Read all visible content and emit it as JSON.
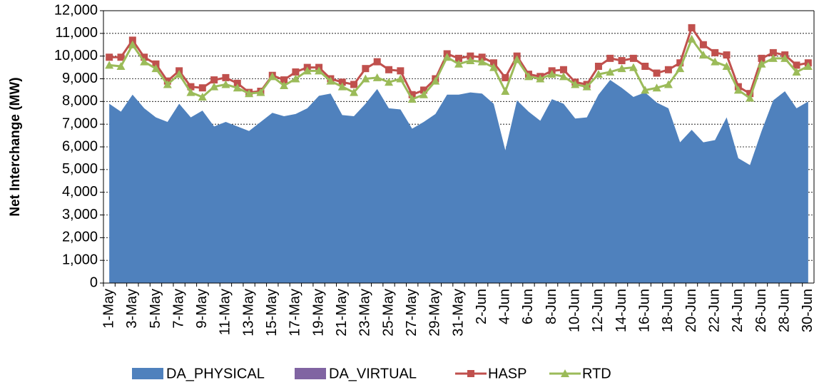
{
  "chart_data": {
    "type": "combo",
    "y_label": "Net Interchange (MW)",
    "categories": [
      "1-May",
      null,
      "3-May",
      null,
      "5-May",
      null,
      "7-May",
      null,
      "9-May",
      null,
      "11-May",
      null,
      "13-May",
      null,
      "15-May",
      null,
      "17-May",
      null,
      "19-May",
      null,
      "21-May",
      null,
      "23-May",
      null,
      "25-May",
      null,
      "27-May",
      null,
      "29-May",
      null,
      "31-May",
      null,
      "2-Jun",
      null,
      "4-Jun",
      null,
      "6-Jun",
      null,
      "8-Jun",
      null,
      "10-Jun",
      null,
      "12-Jun",
      null,
      "14-Jun",
      null,
      "16-Jun",
      null,
      "18-Jun",
      null,
      "20-Jun",
      null,
      "22-Jun",
      null,
      "24-Jun",
      null,
      "26-Jun",
      null,
      "28-Jun",
      null,
      "30-Jun"
    ],
    "series": [
      {
        "name": "DA_PHYSICAL",
        "type": "area",
        "color": "#4f81bd",
        "values": [
          7900,
          7550,
          8300,
          7700,
          7300,
          7100,
          7900,
          7300,
          7600,
          6900,
          7100,
          6900,
          6700,
          7100,
          7500,
          7350,
          7450,
          7700,
          8250,
          8350,
          7400,
          7350,
          7900,
          8550,
          7700,
          7650,
          6800,
          7100,
          7450,
          8300,
          8300,
          8400,
          8350,
          7900,
          5850,
          8050,
          7550,
          7150,
          8100,
          7900,
          7250,
          7300,
          8300,
          8950,
          8600,
          8200,
          8400,
          7950,
          7700,
          6200,
          6750,
          6200,
          6300,
          7300,
          5500,
          5200,
          6700,
          8050,
          8450,
          7700,
          8000
        ]
      },
      {
        "name": "DA_VIRTUAL",
        "type": "area",
        "color": "#8064a2",
        "values": [
          0,
          0,
          0,
          0,
          0,
          0,
          0,
          0,
          0,
          0,
          0,
          0,
          0,
          0,
          0,
          0,
          0,
          0,
          0,
          0,
          0,
          0,
          0,
          0,
          0,
          0,
          0,
          0,
          0,
          0,
          0,
          0,
          0,
          0,
          0,
          0,
          0,
          0,
          0,
          0,
          0,
          0,
          0,
          0,
          0,
          0,
          0,
          0,
          0,
          0,
          0,
          0,
          0,
          0,
          0,
          0,
          0,
          0,
          0,
          0,
          0
        ]
      },
      {
        "name": "HASP",
        "type": "line",
        "marker": "square",
        "color": "#c0504d",
        "values": [
          9950,
          9950,
          10700,
          9950,
          9650,
          8900,
          9350,
          8650,
          8600,
          8950,
          9050,
          8800,
          8400,
          8450,
          9150,
          8950,
          9300,
          9500,
          9500,
          9000,
          8850,
          8750,
          9450,
          9750,
          9400,
          9350,
          8300,
          8500,
          9000,
          10100,
          9900,
          10000,
          9950,
          9700,
          9050,
          10000,
          9200,
          9100,
          9350,
          9400,
          8850,
          8750,
          9550,
          9900,
          9800,
          9900,
          9550,
          9250,
          9400,
          9700,
          11250,
          10500,
          10150,
          10050,
          8650,
          8350,
          9900,
          10150,
          10050,
          9600,
          9700
        ]
      },
      {
        "name": "RTD",
        "type": "line",
        "marker": "triangle",
        "color": "#9bbb59",
        "values": [
          9600,
          9550,
          10500,
          9750,
          9450,
          8750,
          9200,
          8400,
          8200,
          8650,
          8750,
          8600,
          8350,
          8400,
          9100,
          8700,
          9000,
          9350,
          9350,
          8900,
          8650,
          8400,
          9000,
          9050,
          8850,
          9000,
          8100,
          8300,
          8900,
          9950,
          9650,
          9800,
          9750,
          9500,
          8450,
          9850,
          9100,
          9000,
          9200,
          9100,
          8750,
          8650,
          9200,
          9300,
          9450,
          9500,
          8500,
          8600,
          8750,
          9450,
          10750,
          10050,
          9750,
          9550,
          8500,
          8150,
          9650,
          9900,
          9900,
          9300,
          9550
        ]
      }
    ],
    "ylim": [
      0,
      12000
    ],
    "yticks": [
      0,
      {
        "value": 1000,
        "label": "1,000"
      },
      {
        "value": 2000,
        "label": "2,000"
      },
      {
        "value": 3000,
        "label": "3,000"
      },
      {
        "value": 4000,
        "label": "4,000"
      },
      {
        "value": 5000,
        "label": "5,000"
      },
      {
        "value": 6000,
        "label": "6,000"
      },
      {
        "value": 7000,
        "label": "7,000"
      },
      {
        "value": 8000,
        "label": "8,000"
      },
      {
        "value": 9000,
        "label": "9,000"
      },
      {
        "value": 10000,
        "label": "10,000"
      },
      {
        "value": 11000,
        "label": "11,000"
      },
      {
        "value": 12000,
        "label": "12,000"
      }
    ],
    "grid": true,
    "legend": "bottom"
  }
}
